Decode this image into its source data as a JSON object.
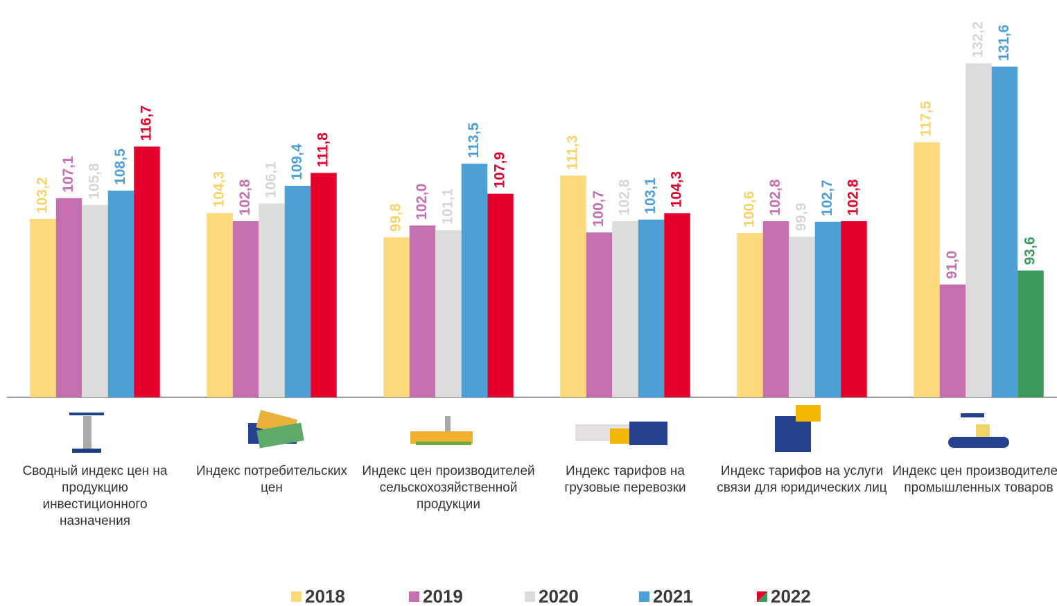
{
  "chart_data": {
    "type": "bar",
    "categories": [
      "Сводный индекс цен на продукцию инвестиционного назначения",
      "Индекс потребительских цен",
      "Индекс цен производителей сельскохозяйственной продукции",
      "Индекс тарифов на грузовые перевозки",
      "Индекс тарифов на услуги связи для юридических лиц",
      "Индекс цен производителей промышленных товаров"
    ],
    "series": [
      {
        "name": "2018",
        "color": "#fcd97a",
        "label_color": "#f7d36a",
        "values": [
          103.2,
          104.3,
          99.8,
          111.3,
          100.6,
          117.5
        ],
        "value_labels": [
          "103,2",
          "104,3",
          "99,8",
          "111,3",
          "100,6",
          "117,5"
        ]
      },
      {
        "name": "2019",
        "color": "#c46fb0",
        "label_color": "#c46fb0",
        "values": [
          107.1,
          102.8,
          102.0,
          100.7,
          102.8,
          91.0
        ],
        "value_labels": [
          "107,1",
          "102,8",
          "102,0",
          "100,7",
          "102,8",
          "91,0"
        ]
      },
      {
        "name": "2020",
        "color": "#dcdcdc",
        "label_color": "#d6d6d6",
        "values": [
          105.8,
          106.1,
          101.1,
          102.8,
          99.9,
          132.2
        ],
        "value_labels": [
          "105,8",
          "106,1",
          "101,1",
          "102,8",
          "99,9",
          "132,2"
        ]
      },
      {
        "name": "2021",
        "color": "#4e9fd6",
        "label_color": "#4e9fd6",
        "values": [
          108.5,
          109.4,
          113.5,
          103.1,
          102.7,
          131.6
        ],
        "value_labels": [
          "108,5",
          "109,4",
          "113,5",
          "103,1",
          "102,7",
          "131,6"
        ]
      },
      {
        "name": "2022",
        "color": "#e4002b",
        "colors": [
          "#e4002b",
          "#e4002b",
          "#e4002b",
          "#e4002b",
          "#e4002b",
          "#3d9a5e"
        ],
        "values": [
          116.7,
          111.8,
          107.9,
          104.3,
          102.8,
          93.6
        ],
        "value_labels": [
          "116,7",
          "111,8",
          "107,9",
          "104,3",
          "102,8",
          "93,6"
        ]
      }
    ],
    "ylim": [
      70,
      144
    ]
  }
}
